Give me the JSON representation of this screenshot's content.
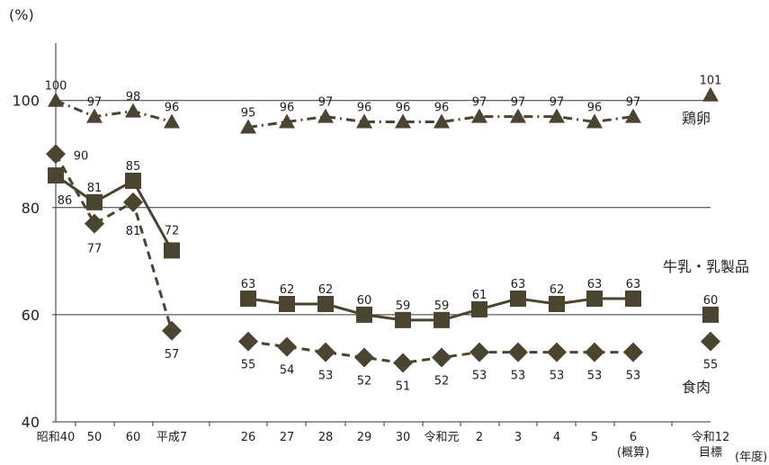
{
  "chart_data": {
    "type": "line",
    "y_unit_label": "(%)",
    "x_unit_label": "(年度)",
    "ylim": [
      40,
      110
    ],
    "yticks": [
      40,
      60,
      80,
      100
    ],
    "gridlines_at": [
      60,
      80,
      100
    ],
    "categories": [
      "昭和40",
      "50",
      "60",
      "平成7",
      "26",
      "27",
      "28",
      "29",
      "30",
      "令和元",
      "2",
      "3",
      "4",
      "5",
      "6",
      "令和12"
    ],
    "category_sublabels": {
      "6": "(概算)",
      "令和12": "目標"
    },
    "series": [
      {
        "name": "鶏卵",
        "marker": "triangle",
        "line_style": "dash-dot",
        "color": "#4a4430",
        "values": [
          100,
          97,
          98,
          96,
          95,
          96,
          97,
          96,
          96,
          96,
          97,
          97,
          97,
          96,
          97,
          101
        ]
      },
      {
        "name": "牛乳・乳製品",
        "marker": "square",
        "line_style": "solid",
        "color": "#4a4430",
        "values": [
          86,
          81,
          85,
          72,
          63,
          62,
          62,
          60,
          59,
          59,
          61,
          63,
          62,
          63,
          63,
          60
        ]
      },
      {
        "name": "食肉",
        "marker": "diamond",
        "line_style": "dashed",
        "color": "#4a4430",
        "values": [
          90,
          77,
          81,
          57,
          55,
          54,
          53,
          52,
          51,
          52,
          53,
          53,
          53,
          53,
          53,
          55
        ]
      }
    ]
  }
}
